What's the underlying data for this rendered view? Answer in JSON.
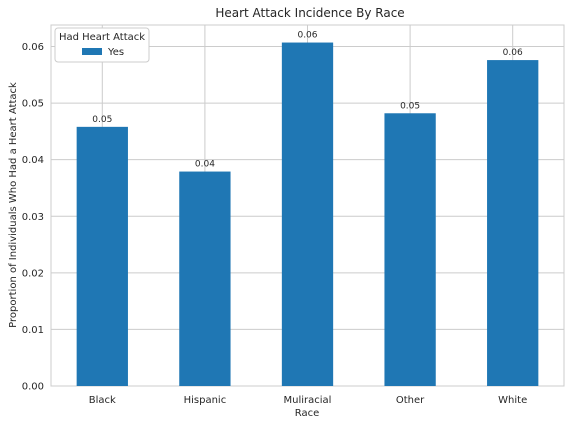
{
  "chart_data": {
    "type": "bar",
    "title": "Heart Attack Incidence By Race",
    "xlabel": "Race",
    "ylabel": "Proportion of Individuals Who Had a Heart Attack",
    "categories": [
      "Black",
      "Hispanic",
      "Muliracial",
      "Other",
      "White"
    ],
    "series": [
      {
        "name": "Yes",
        "values": [
          0.0458,
          0.0379,
          0.0607,
          0.0482,
          0.0576
        ],
        "data_labels": [
          "0.05",
          "0.04",
          "0.06",
          "0.05",
          "0.06"
        ],
        "color": "#1f77b4"
      }
    ],
    "ylim": [
      0,
      0.0638
    ],
    "yticks": [
      0.0,
      0.01,
      0.02,
      0.03,
      0.04,
      0.05,
      0.06
    ],
    "ytick_labels": [
      "0.00",
      "0.01",
      "0.02",
      "0.03",
      "0.04",
      "0.05",
      "0.06"
    ],
    "grid": true,
    "legend": {
      "title": "Had Heart Attack",
      "placement": "top-left"
    },
    "colors": {
      "grid": "#cccccc",
      "text": "#262626"
    }
  }
}
